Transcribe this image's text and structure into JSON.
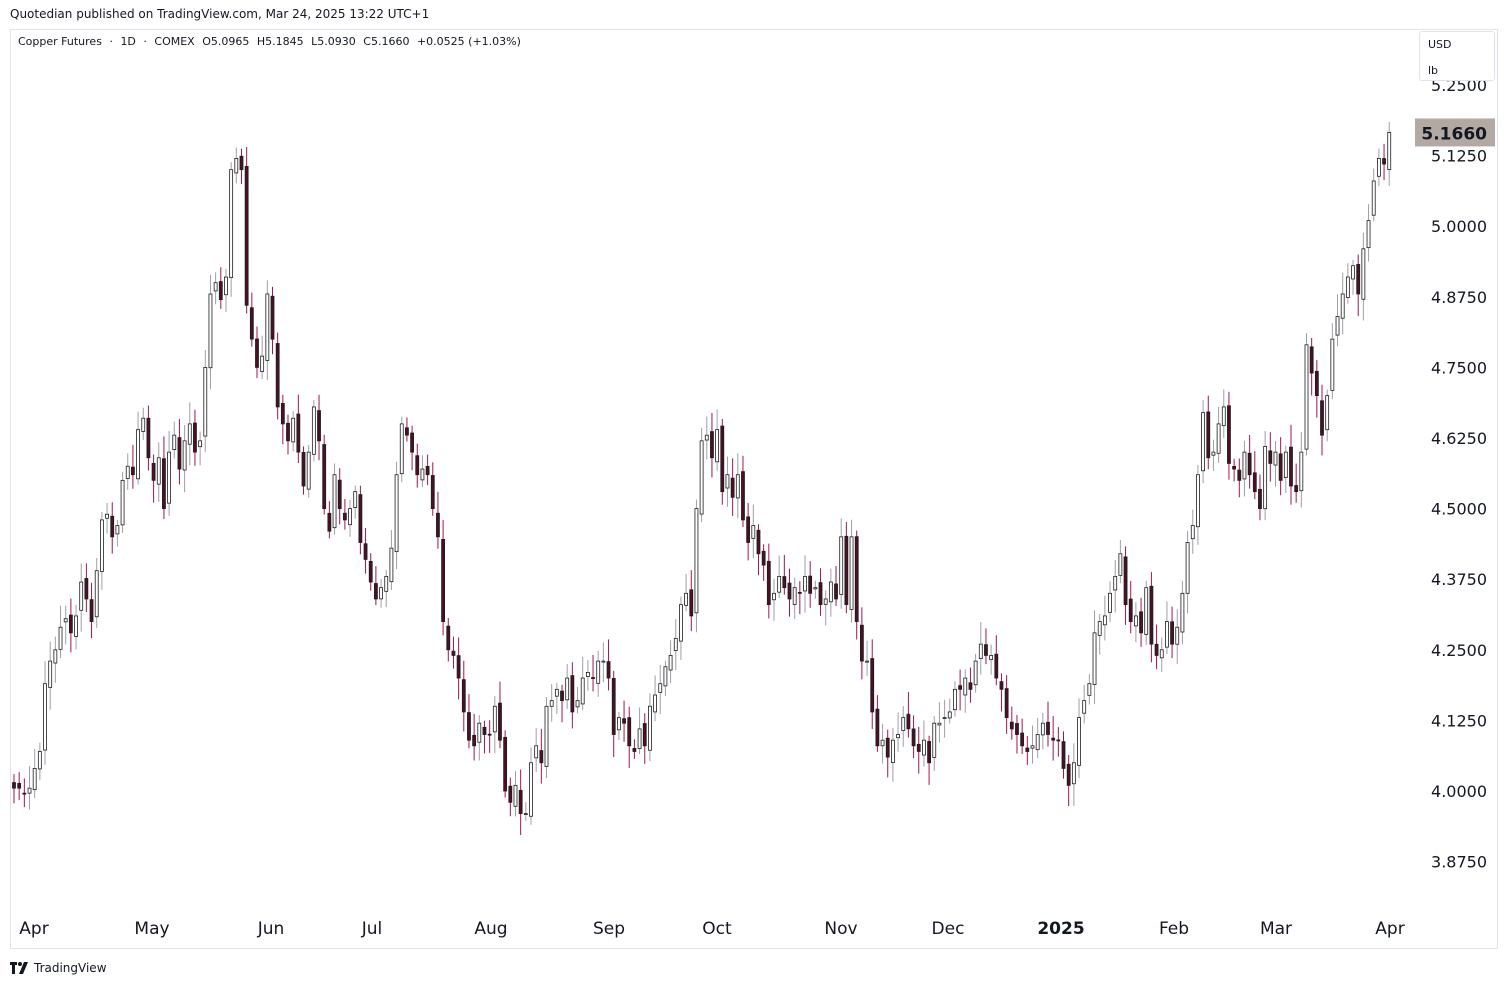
{
  "header": {
    "published_line": "Quotedian published on TradingView.com, Mar 24, 2025 13:22 UTC+1"
  },
  "legend": {
    "instrument": "Copper Futures",
    "timeframe": "1D",
    "exchange": "COMEX",
    "separator": "·",
    "open": "O5.0965",
    "high": "H5.1845",
    "low": "L5.0930",
    "close": "C5.1660",
    "change": "+0.0525 (+1.03%)"
  },
  "units": {
    "currency": "USD",
    "unit": "lb"
  },
  "footer": {
    "brand": "TradingView"
  },
  "colors": {
    "up_body": "#ffffff",
    "down_body": "#4a1024",
    "outline": "#1e1e1e",
    "wick_up": "#9e9ea8",
    "wick_down": "#a0154f",
    "last_price_bg": "#b2aaa2"
  },
  "chart_data": {
    "type": "candlestick",
    "title": "Copper Futures · 1D · COMEX",
    "ylim": [
      3.8,
      5.29
    ],
    "y_ticks": [
      "5.2500",
      "5.1250",
      "5.0000",
      "4.8750",
      "4.7500",
      "4.6250",
      "4.5000",
      "4.3750",
      "4.2500",
      "4.1250",
      "4.0000",
      "3.8750"
    ],
    "x_ticks": [
      "Apr",
      "May",
      "Jun",
      "Jul",
      "Aug",
      "Sep",
      "Oct",
      "Nov",
      "Dec",
      "2025",
      "Feb",
      "Mar",
      "Apr"
    ],
    "last_price": "5.1660",
    "last_price_value": 5.166,
    "close_series": [
      4.005,
      4.005,
      3.995,
      4.005,
      4.04,
      4.07,
      4.19,
      4.23,
      4.25,
      4.29,
      4.305,
      4.28,
      4.31,
      4.37,
      4.34,
      4.3,
      4.39,
      4.48,
      4.49,
      4.45,
      4.47,
      4.55,
      4.575,
      4.56,
      4.64,
      4.66,
      4.59,
      4.55,
      4.59,
      4.5,
      4.6,
      4.63,
      4.57,
      4.62,
      4.65,
      4.6,
      4.62,
      4.75,
      4.88,
      4.9,
      4.87,
      4.91,
      5.1,
      5.12,
      5.1,
      4.86,
      4.8,
      4.75,
      4.77,
      4.88,
      4.8,
      4.68,
      4.65,
      4.62,
      4.66,
      4.6,
      4.54,
      4.6,
      4.68,
      4.62,
      4.5,
      4.46,
      4.56,
      4.5,
      4.48,
      4.5,
      4.53,
      4.44,
      4.41,
      4.37,
      4.34,
      4.36,
      4.38,
      4.43,
      4.56,
      4.65,
      4.63,
      4.6,
      4.56,
      4.57,
      4.56,
      4.5,
      4.45,
      4.3,
      4.25,
      4.24,
      4.2,
      4.14,
      4.09,
      4.08,
      4.12,
      4.1,
      4.1,
      4.15,
      4.09,
      4.0,
      3.98,
      4.01,
      3.96,
      3.96,
      4.05,
      4.08,
      4.05,
      4.15,
      4.16,
      4.18,
      4.16,
      4.2,
      4.14,
      4.16,
      4.2,
      4.21,
      4.2,
      4.23,
      4.23,
      4.2,
      4.1,
      4.13,
      4.12,
      4.08,
      4.07,
      4.11,
      4.08,
      4.15,
      4.17,
      4.19,
      4.22,
      4.24,
      4.27,
      4.33,
      4.35,
      4.31,
      4.5,
      4.62,
      4.63,
      4.59,
      4.64,
      4.53,
      4.56,
      4.52,
      4.56,
      4.48,
      4.44,
      4.47,
      4.42,
      4.4,
      4.33,
      4.35,
      4.38,
      4.36,
      4.34,
      4.36,
      4.35,
      4.38,
      4.35,
      4.36,
      4.33,
      4.34,
      4.37,
      4.34,
      4.45,
      4.33,
      4.45,
      4.3,
      4.23,
      4.23,
      4.14,
      4.08,
      4.09,
      4.06,
      4.09,
      4.1,
      4.13,
      4.11,
      4.08,
      4.07,
      4.09,
      4.05,
      4.12,
      4.12,
      4.13,
      4.14,
      4.18,
      4.18,
      4.2,
      4.18,
      4.23,
      4.26,
      4.24,
      4.24,
      4.2,
      4.18,
      4.13,
      4.11,
      4.1,
      4.08,
      4.07,
      4.08,
      4.1,
      4.12,
      4.1,
      4.09,
      4.09,
      4.04,
      4.01,
      4.05,
      4.13,
      4.16,
      4.19,
      4.28,
      4.3,
      4.31,
      4.35,
      4.38,
      4.42,
      4.33,
      4.3,
      4.31,
      4.28,
      4.36,
      4.26,
      4.24,
      4.25,
      4.3,
      4.26,
      4.29,
      4.35,
      4.44,
      4.47,
      4.56,
      4.67,
      4.59,
      4.6,
      4.65,
      4.68,
      4.58,
      4.57,
      4.55,
      4.6,
      4.56,
      4.53,
      4.5,
      4.61,
      4.58,
      4.6,
      4.55,
      4.6,
      4.54,
      4.53,
      4.6,
      4.79,
      4.74,
      4.7,
      4.63,
      4.7,
      4.8,
      4.84,
      4.88,
      4.91,
      4.93,
      4.88,
      4.96,
      5.01,
      5.08,
      5.12,
      5.11,
      5.166
    ]
  }
}
